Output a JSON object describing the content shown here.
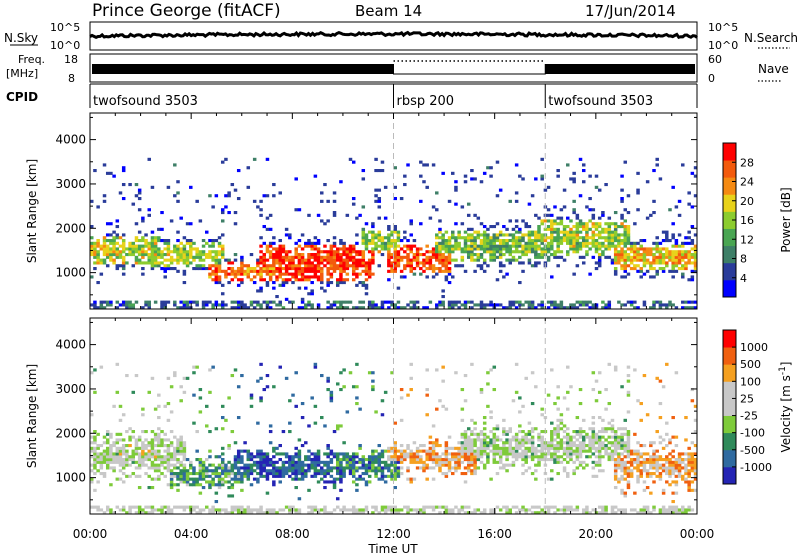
{
  "header": {
    "station": "Prince George (fitACF)",
    "beam": "Beam 14",
    "date": "17/Jun/2014"
  },
  "strips": {
    "nsky": {
      "label": "N.Sky",
      "ticks": [
        "10^5",
        "10^0"
      ]
    },
    "nsearch": {
      "label": "N.Search",
      "ticks": [
        "10^5",
        "10^0"
      ]
    },
    "freq": {
      "label_line1": "Freq.",
      "label_line2": "[MHz]",
      "ticks": [
        "18",
        "8"
      ]
    },
    "nave": {
      "label": "Nave",
      "ticks": [
        "60",
        "0"
      ]
    },
    "cpid": {
      "label": "CPID",
      "segments": [
        {
          "name": "twofsound 3503",
          "start_h": 0
        },
        {
          "name": "rbsp 200",
          "start_h": 12
        },
        {
          "name": "twofsound 3503",
          "start_h": 18
        }
      ]
    }
  },
  "chart_data": [
    {
      "type": "heatmap",
      "quantity": "power",
      "ylabel": "Slant Range [km]",
      "xlabel": "Time UT",
      "xlim_hours": [
        0,
        24
      ],
      "ylim": [
        180,
        4600
      ],
      "yticks": [
        1000,
        2000,
        3000,
        4000
      ],
      "xtick_labels": [
        "00:00",
        "04:00",
        "08:00",
        "12:00",
        "16:00",
        "20:00",
        "00:00"
      ],
      "colorbar": {
        "label": "Power [dB]",
        "ticks": [
          "28",
          "24",
          "20",
          "16",
          "12",
          "8",
          "4"
        ],
        "colors": [
          "#0000ff",
          "#2a3c9a",
          "#3e7f67",
          "#49a552",
          "#8ccc2e",
          "#e8d21a",
          "#f58a12",
          "#f35a0c",
          "#ff0000"
        ]
      },
      "vertical_markers_h": [
        12,
        18
      ],
      "scatter_bands": [
        {
          "t": [
            0,
            2.5
          ],
          "center_km": 1500,
          "width_km": 350,
          "level": 0.55
        },
        {
          "t": [
            2.5,
            5
          ],
          "center_km": 1400,
          "width_km": 300,
          "level": 0.5
        },
        {
          "t": [
            5,
            7
          ],
          "center_km": 1050,
          "width_km": 250,
          "level": 0.78
        },
        {
          "t": [
            7,
            11
          ],
          "center_km": 1200,
          "width_km": 450,
          "level": 0.9
        },
        {
          "t": [
            11,
            12
          ],
          "center_km": 1700,
          "width_km": 300,
          "level": 0.5
        },
        {
          "t": [
            12,
            14
          ],
          "center_km": 1300,
          "width_km": 350,
          "level": 0.85
        },
        {
          "t": [
            14,
            18
          ],
          "center_km": 1600,
          "width_km": 400,
          "level": 0.45
        },
        {
          "t": [
            18,
            21
          ],
          "center_km": 1800,
          "width_km": 450,
          "level": 0.5
        },
        {
          "t": [
            21,
            24
          ],
          "center_km": 1350,
          "width_km": 350,
          "level": 0.65
        }
      ]
    },
    {
      "type": "heatmap",
      "quantity": "velocity",
      "ylabel": "Slant Range [km]",
      "xlabel": "Time UT",
      "xlim_hours": [
        0,
        24
      ],
      "ylim": [
        180,
        4600
      ],
      "yticks": [
        1000,
        2000,
        3000,
        4000
      ],
      "xtick_labels": [
        "00:00",
        "04:00",
        "08:00",
        "12:00",
        "16:00",
        "20:00",
        "00:00"
      ],
      "colorbar": {
        "label": "Velocity [m s",
        "label_exp": "-1",
        "label_end": "]",
        "ticks": [
          "1000",
          "500",
          "100",
          "25",
          "-25",
          "-100",
          "-500",
          "-1000"
        ],
        "colors": [
          "#2424b4",
          "#2f6aa0",
          "#2f8a5a",
          "#7ecb3a",
          "#c8c8c8",
          "#c8c8c8",
          "#f5a020",
          "#f06010",
          "#ff0000"
        ]
      },
      "vertical_markers_h": [
        12,
        18
      ],
      "scatter_bands": [
        {
          "t": [
            0,
            3.5
          ],
          "center_km": 1500,
          "width_km": 450,
          "level": 0.5
        },
        {
          "t": [
            3.5,
            6
          ],
          "center_km": 1100,
          "width_km": 300,
          "level": 0.3
        },
        {
          "t": [
            6,
            10
          ],
          "center_km": 1250,
          "width_km": 350,
          "level": 0.15
        },
        {
          "t": [
            10,
            12
          ],
          "center_km": 1300,
          "width_km": 350,
          "level": 0.25
        },
        {
          "t": [
            12,
            15
          ],
          "center_km": 1450,
          "width_km": 300,
          "level": 0.7
        },
        {
          "t": [
            15,
            21
          ],
          "center_km": 1700,
          "width_km": 450,
          "level": 0.48
        },
        {
          "t": [
            21,
            24
          ],
          "center_km": 1300,
          "width_km": 400,
          "level": 0.7
        }
      ]
    }
  ]
}
